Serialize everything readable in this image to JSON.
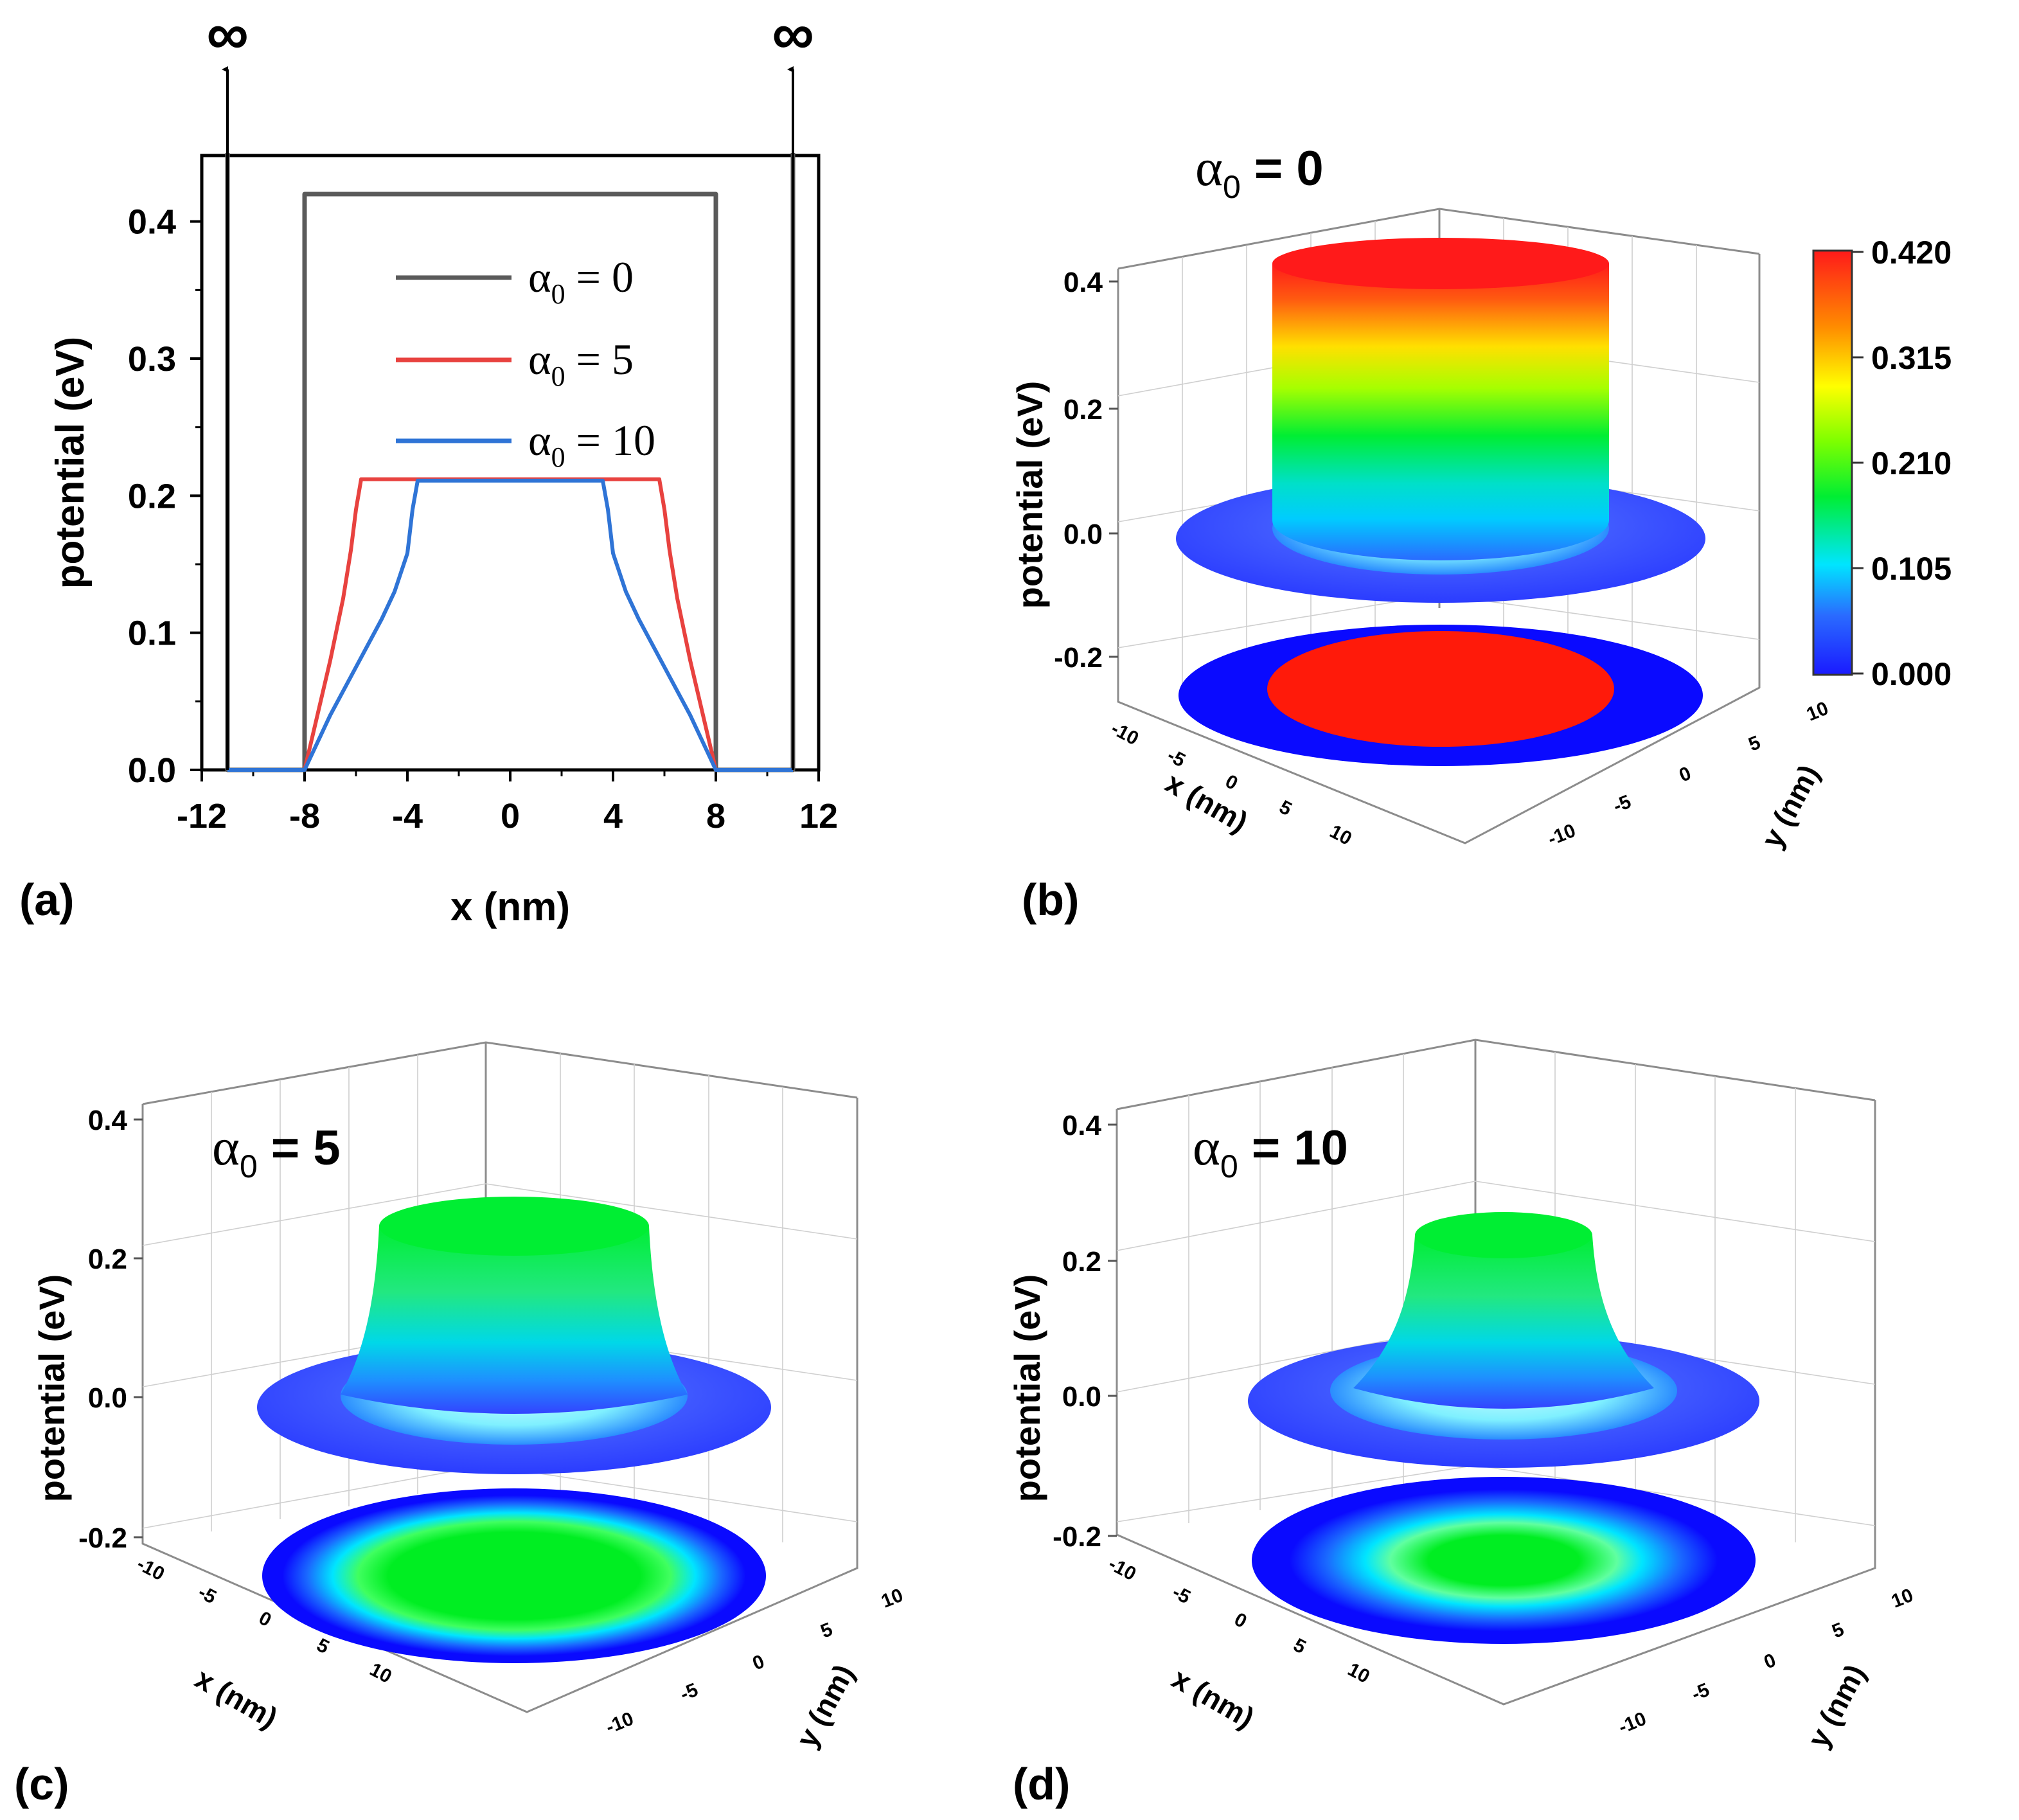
{
  "colors": {
    "alpha0": "#5a5a5a",
    "alpha5": "#e8423f",
    "alpha10": "#2f74d6",
    "colorscale": [
      "#1a1aff",
      "#2a6bff",
      "#00e5ff",
      "#00ee33",
      "#7dff00",
      "#ffff00",
      "#ff8c00",
      "#ff1a1a"
    ]
  },
  "chart_data": [
    {
      "panel": "(a)",
      "type": "line",
      "xlabel": "x (nm)",
      "ylabel": "potential (eV)",
      "xlim": [
        -12,
        12
      ],
      "ylim": [
        0,
        0.45
      ],
      "xticks": [
        "-12",
        "-8",
        "-4",
        "0",
        "4",
        "8",
        "12"
      ],
      "yticks": [
        "0.0",
        "0.1",
        "0.2",
        "0.3",
        "0.4"
      ],
      "infinity_label": "∞",
      "infinity_walls_x": [
        -11,
        11
      ],
      "legend": [
        {
          "name": "α0 = 0",
          "greek": "α",
          "sub": "0",
          "rest": " = 0"
        },
        {
          "name": "α0 = 5",
          "greek": "α",
          "sub": "0",
          "rest": " = 5"
        },
        {
          "name": "α0 = 10",
          "greek": "α",
          "sub": "0",
          "rest": " = 10"
        }
      ],
      "series": [
        {
          "name": "α0 = 0",
          "x": [
            -11,
            -11,
            -11,
            -8,
            -8,
            8,
            8,
            11,
            11
          ],
          "y": [
            0.45,
            0,
            0,
            0,
            0.42,
            0.42,
            0,
            0,
            0.45
          ]
        },
        {
          "name": "α0 = 5",
          "x": [
            -11,
            -8,
            -7.5,
            -7,
            -6.5,
            -6.2,
            -6,
            -5.8,
            5.8,
            6,
            6.2,
            6.5,
            7,
            7.5,
            8,
            11
          ],
          "y": [
            0,
            0,
            0.04,
            0.08,
            0.125,
            0.16,
            0.19,
            0.212,
            0.212,
            0.19,
            0.16,
            0.125,
            0.08,
            0.04,
            0,
            0
          ]
        },
        {
          "name": "α0 = 10",
          "x": [
            -11,
            -8,
            -7,
            -6,
            -5,
            -4.5,
            -4,
            -3.8,
            -3.6,
            3.6,
            3.8,
            4,
            4.5,
            5,
            6,
            7,
            8,
            11
          ],
          "y": [
            0,
            0,
            0.04,
            0.075,
            0.11,
            0.13,
            0.158,
            0.19,
            0.211,
            0.211,
            0.19,
            0.158,
            0.13,
            0.11,
            0.075,
            0.04,
            0,
            0
          ]
        }
      ]
    },
    {
      "panel": "(b)",
      "type": "surface3d",
      "alpha_label": {
        "greek": "α",
        "sub": "0",
        "rest": " = 0"
      },
      "zlabel": "potential (eV)",
      "xlabel": "x (nm)",
      "ylabel": "y (nm)",
      "zticks": [
        "0.4",
        "0.2",
        "0.0",
        "-0.2"
      ],
      "xticks": [
        "-10",
        "-5",
        "0",
        "5",
        "10"
      ],
      "yticks": [
        "10",
        "5",
        "0",
        "-5",
        "-10"
      ],
      "plateau_eV": 0.42,
      "colorbar": {
        "ticks": [
          "0.420",
          "0.315",
          "0.210",
          "0.105",
          "0.000"
        ],
        "min": 0,
        "max": 0.42
      }
    },
    {
      "panel": "(c)",
      "type": "surface3d",
      "alpha_label": {
        "greek": "α",
        "sub": "0",
        "rest": " = 5"
      },
      "zlabel": "potential (eV)",
      "xlabel": "x (nm)",
      "ylabel": "y (nm)",
      "zticks": [
        "0.4",
        "0.2",
        "0.0",
        "-0.2"
      ],
      "xticks": [
        "-10",
        "-5",
        "0",
        "5",
        "10"
      ],
      "yticks": [
        "10",
        "5",
        "0",
        "-5",
        "-10"
      ],
      "plateau_eV": 0.21
    },
    {
      "panel": "(d)",
      "type": "surface3d",
      "alpha_label": {
        "greek": "α",
        "sub": "0",
        "rest": " = 10"
      },
      "zlabel": "potential (eV)",
      "xlabel": "x (nm)",
      "ylabel": "y (nm)",
      "zticks": [
        "0.4",
        "0.2",
        "0.0",
        "-0.2"
      ],
      "xticks": [
        "-10",
        "-5",
        "0",
        "5",
        "10"
      ],
      "yticks": [
        "10",
        "5",
        "0",
        "-5",
        "-10"
      ],
      "plateau_eV": 0.21
    }
  ]
}
